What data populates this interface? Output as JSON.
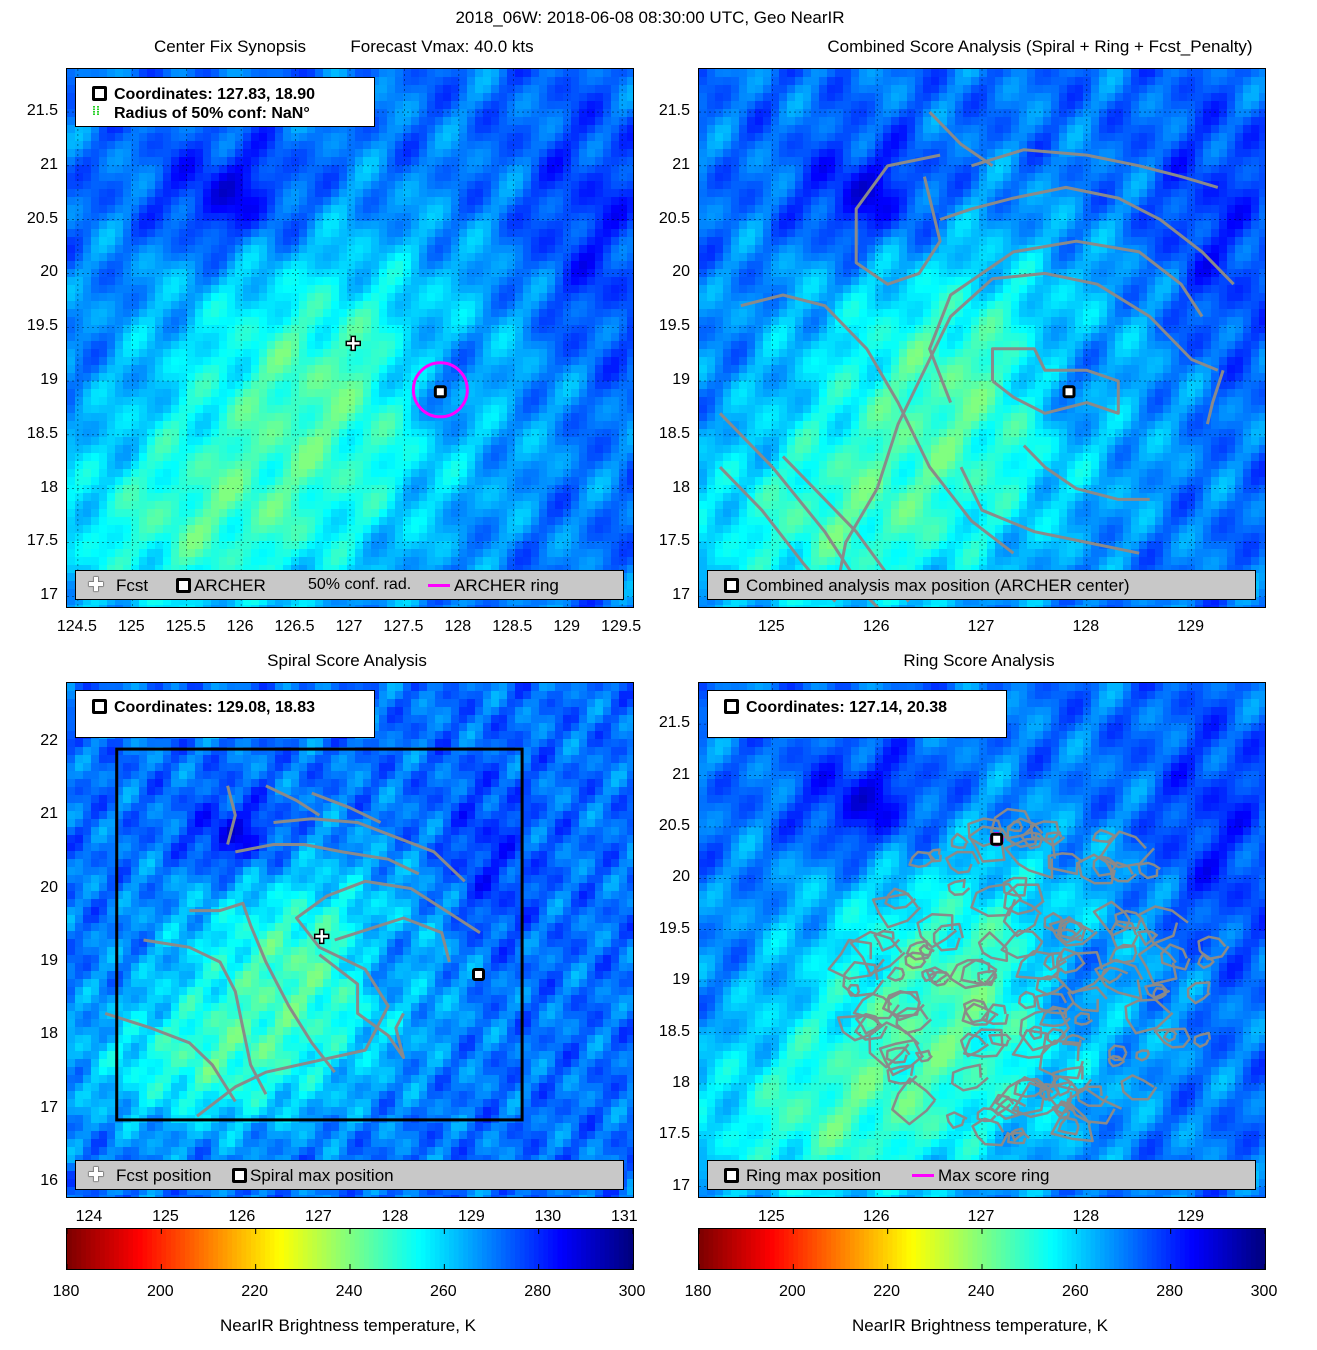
{
  "figure_title": "2018_06W: 2018-06-08 08:30:00 UTC, Geo NearIR",
  "colors": {
    "archer_ring": "#ff00ff",
    "contour": "#8a8a8a",
    "legend_bg": "#c8c8c8",
    "grid": "#000000"
  },
  "icons": {
    "fcst": "plus-marker-icon",
    "archer": "square-marker-icon"
  },
  "chart_data": [
    {
      "type": "heatmap",
      "title_left": "Center Fix Synopsis",
      "title_right": "Forecast Vmax: 40.0 kts",
      "xlim": [
        124.4,
        129.6
      ],
      "ylim": [
        16.9,
        21.9
      ],
      "xticks": [
        "124.5",
        "125",
        "125.5",
        "126",
        "126.5",
        "127",
        "127.5",
        "128",
        "128.5",
        "129",
        "129.5"
      ],
      "yticks": [
        "17",
        "17.5",
        "18",
        "18.5",
        "19",
        "19.5",
        "20",
        "20.5",
        "21",
        "21.5"
      ],
      "grid": "on",
      "info": {
        "line1": "Coordinates: 127.83, 18.90",
        "line2": "Radius of 50% conf: NaN°"
      },
      "fcst_position": [
        127.03,
        19.35
      ],
      "archer_position": [
        127.83,
        18.9
      ],
      "legend": {
        "fcst": "Fcst",
        "archer": "ARCHER",
        "conf": "50% conf. rad.",
        "ring": "ARCHER ring"
      }
    },
    {
      "type": "heatmap",
      "title": "Combined Score Analysis (Spiral + Ring + Fcst_Penalty)",
      "xlim": [
        124.3,
        129.7
      ],
      "ylim": [
        16.9,
        21.9
      ],
      "xticks": [
        "125",
        "126",
        "127",
        "128",
        "129"
      ],
      "yticks": [
        "17",
        "17.5",
        "18",
        "18.5",
        "19",
        "19.5",
        "20",
        "20.5",
        "21",
        "21.5"
      ],
      "grid": "on",
      "max_position": [
        127.83,
        18.9
      ],
      "legend": {
        "max": "Combined analysis max position (ARCHER center)"
      }
    },
    {
      "type": "heatmap",
      "title": "Spiral Score Analysis",
      "xlim": [
        123.7,
        131.1
      ],
      "ylim": [
        15.8,
        22.8
      ],
      "xticks": [
        "124",
        "125",
        "126",
        "127",
        "128",
        "129",
        "130",
        "131"
      ],
      "yticks": [
        "16",
        "17",
        "18",
        "19",
        "20",
        "21",
        "22"
      ],
      "grid": "off",
      "info": {
        "line1": "Coordinates: 129.08, 18.83"
      },
      "fcst_position": [
        127.03,
        19.35
      ],
      "max_position": [
        129.08,
        18.83
      ],
      "search_box": {
        "lon": [
          124.35,
          129.65
        ],
        "lat": [
          16.85,
          21.9
        ]
      },
      "legend": {
        "fcst": "Fcst position",
        "max": "Spiral max position"
      }
    },
    {
      "type": "heatmap",
      "title": "Ring Score Analysis",
      "xlim": [
        124.3,
        129.7
      ],
      "ylim": [
        16.9,
        21.9
      ],
      "xticks": [
        "125",
        "126",
        "127",
        "128",
        "129"
      ],
      "yticks": [
        "17",
        "17.5",
        "18",
        "18.5",
        "19",
        "19.5",
        "20",
        "20.5",
        "21",
        "21.5"
      ],
      "grid": "on",
      "info": {
        "line1": "Coordinates: 127.14, 20.38"
      },
      "max_position": [
        127.14,
        20.38
      ],
      "legend": {
        "max": "Ring max position",
        "ring": "Max score ring"
      }
    }
  ],
  "colorbars": [
    {
      "ticks": [
        "180",
        "200",
        "220",
        "240",
        "260",
        "280",
        "300"
      ],
      "range": [
        180,
        300
      ],
      "label": "NearIR Brightness temperature, K"
    },
    {
      "ticks": [
        "180",
        "200",
        "220",
        "240",
        "260",
        "280",
        "300"
      ],
      "range": [
        180,
        300
      ],
      "label": "NearIR Brightness temperature, K"
    }
  ]
}
